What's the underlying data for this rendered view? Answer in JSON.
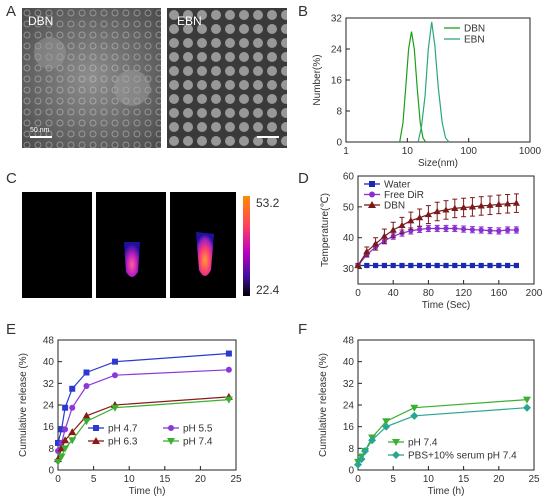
{
  "panels": {
    "A": "A",
    "B": "B",
    "C": "C",
    "D": "D",
    "E": "E",
    "F": "F"
  },
  "tem": {
    "left_label": "DBN",
    "right_label": "EBN",
    "scale_text": "50 nm"
  },
  "thermal": {
    "max_label": "53.2",
    "min_label": "22.4",
    "colorbar_colors": [
      "#ff8c00",
      "#ff4060",
      "#c000c0",
      "#4010a0",
      "#000000"
    ]
  },
  "chart_data": [
    {
      "panel": "B",
      "type": "line",
      "xlabel": "Size(nm)",
      "ylabel": "Number(%)",
      "xscale": "log",
      "xlim": [
        1,
        1000
      ],
      "ylim": [
        0,
        32
      ],
      "xticks": [
        1,
        10,
        100,
        1000
      ],
      "yticks": [
        0,
        8,
        16,
        24,
        32
      ],
      "legend": "top-right",
      "series": [
        {
          "name": "DBN",
          "color": "#1aa01a",
          "x": [
            7.5,
            8.5,
            9.5,
            10.5,
            11.7,
            13,
            14.5,
            16.2,
            18,
            20
          ],
          "y": [
            0,
            5,
            15,
            24,
            28.5,
            24,
            14,
            5,
            1,
            0
          ]
        },
        {
          "name": "EBN",
          "color": "#2aa680",
          "x": [
            15,
            17,
            19.5,
            22,
            25,
            28,
            32,
            37,
            42,
            48
          ],
          "y": [
            0,
            4,
            12,
            24,
            31,
            25,
            14,
            5,
            1,
            0
          ]
        }
      ]
    },
    {
      "panel": "D",
      "type": "line",
      "xlabel": "Time (Sec)",
      "ylabel": "Temperature(℃)",
      "xlim": [
        0,
        200
      ],
      "ylim": [
        25,
        60
      ],
      "xticks": [
        0,
        40,
        80,
        120,
        160,
        200
      ],
      "yticks": [
        30,
        40,
        50,
        60
      ],
      "legend": "top-left",
      "series": [
        {
          "name": "Water",
          "color": "#1a2ab0",
          "marker": "square",
          "x": [
            0,
            10,
            20,
            30,
            40,
            50,
            60,
            70,
            80,
            90,
            100,
            110,
            120,
            130,
            140,
            150,
            160,
            170,
            180
          ],
          "y": [
            31,
            31,
            31,
            31,
            31,
            31,
            31,
            31,
            31,
            31,
            31,
            31,
            31,
            31,
            31,
            31,
            31,
            31,
            31
          ],
          "err": [
            0.5,
            0.5,
            0.5,
            0.5,
            0.5,
            0.5,
            0.5,
            0.5,
            0.5,
            0.5,
            0.5,
            0.5,
            0.5,
            0.5,
            0.5,
            0.5,
            0.5,
            0.5,
            0.5
          ]
        },
        {
          "name": "Free DiR",
          "color": "#8a30d0",
          "marker": "circle",
          "x": [
            0,
            10,
            20,
            30,
            40,
            50,
            60,
            70,
            80,
            90,
            100,
            110,
            120,
            130,
            140,
            150,
            160,
            170,
            180
          ],
          "y": [
            31,
            34.5,
            37,
            39,
            40.5,
            41.5,
            42.2,
            42.7,
            43,
            43,
            43,
            43,
            42.8,
            42.6,
            42.5,
            42.3,
            42.2,
            42.5,
            42.5
          ],
          "err": [
            0.4,
            0.8,
            1,
            1,
            1,
            1,
            1,
            1,
            1,
            1,
            1,
            1,
            1,
            1,
            1,
            1,
            1,
            1,
            1
          ]
        },
        {
          "name": "DBN",
          "color": "#7a1a1a",
          "marker": "triangle",
          "x": [
            0,
            10,
            20,
            30,
            40,
            50,
            60,
            70,
            80,
            90,
            100,
            110,
            120,
            130,
            140,
            150,
            160,
            170,
            180
          ],
          "y": [
            31,
            35.5,
            38,
            40.5,
            42.5,
            44,
            45.5,
            46.5,
            47.5,
            48.5,
            49,
            49.5,
            49.8,
            50,
            50.3,
            50.5,
            50.8,
            51,
            51.2
          ],
          "err": [
            0.4,
            1.5,
            2,
            2.3,
            2.5,
            2.6,
            2.8,
            2.8,
            2.9,
            3,
            3,
            3,
            3,
            3,
            3,
            3,
            3,
            3,
            3
          ]
        }
      ]
    },
    {
      "panel": "E",
      "type": "line",
      "xlabel": "Time (h)",
      "ylabel": "Cumulative release (%)",
      "xlim": [
        0,
        25
      ],
      "ylim": [
        0,
        48
      ],
      "xticks": [
        0,
        5,
        10,
        15,
        20,
        25
      ],
      "yticks": [
        0,
        8,
        16,
        24,
        32,
        40,
        48
      ],
      "legend": "bottom-right",
      "series": [
        {
          "name": "pH 4.7",
          "color": "#2a3ad0",
          "marker": "square",
          "x": [
            0,
            0.5,
            1,
            2,
            4,
            8,
            24
          ],
          "y": [
            10,
            15,
            23,
            30,
            36,
            40,
            43
          ]
        },
        {
          "name": "pH 5.5",
          "color": "#8a38d8",
          "marker": "circle",
          "x": [
            0,
            0.5,
            1,
            2,
            4,
            8,
            24
          ],
          "y": [
            7,
            10,
            15,
            23,
            31,
            35,
            37
          ]
        },
        {
          "name": "pH 6.3",
          "color": "#8a1a1a",
          "marker": "triangle",
          "x": [
            0,
            0.5,
            1,
            2,
            4,
            8,
            24
          ],
          "y": [
            4,
            8,
            11,
            14,
            20,
            24,
            27
          ]
        },
        {
          "name": "pH 7.4",
          "color": "#3ab030",
          "marker": "triangle-down",
          "x": [
            0,
            0.5,
            1,
            2,
            4,
            8,
            24
          ],
          "y": [
            3,
            5,
            8,
            11,
            18,
            23,
            26
          ]
        }
      ]
    },
    {
      "panel": "F",
      "type": "line",
      "xlabel": "Time (h)",
      "ylabel": "Cumulative release (%)",
      "xlim": [
        0,
        25
      ],
      "ylim": [
        0,
        48
      ],
      "xticks": [
        0,
        5,
        10,
        15,
        20,
        25
      ],
      "yticks": [
        0,
        8,
        16,
        24,
        32,
        40,
        48
      ],
      "legend": "bottom-right",
      "series": [
        {
          "name": "pH 7.4",
          "color": "#3ab030",
          "marker": "triangle-down",
          "x": [
            0,
            0.5,
            1,
            2,
            4,
            8,
            24
          ],
          "y": [
            3,
            5,
            7,
            12,
            18,
            23,
            26
          ]
        },
        {
          "name": "PBS+10% serum pH 7.4",
          "color": "#2aa690",
          "marker": "diamond",
          "x": [
            0,
            0.5,
            1,
            2,
            4,
            8,
            24
          ],
          "y": [
            2,
            4,
            7,
            11,
            16,
            20,
            23
          ]
        }
      ]
    }
  ]
}
